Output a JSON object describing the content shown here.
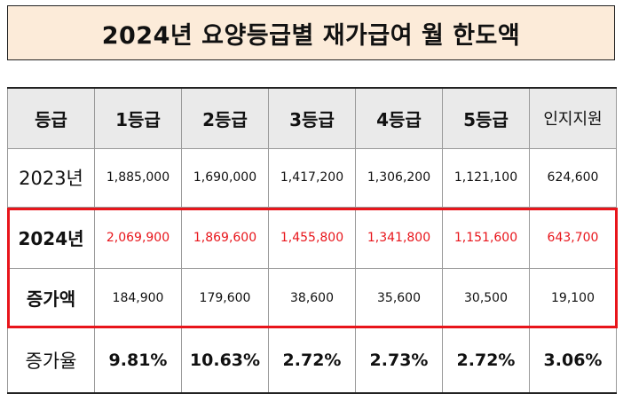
{
  "title": "2024년 요양등급별 재가급여 월 한도액",
  "headers": [
    "등급",
    "1등급",
    "2등급",
    "3등급",
    "4등급",
    "5등급",
    "인지지원"
  ],
  "rows": [
    {
      "label": "2023년",
      "values": [
        "1,885,000",
        "1,690,000",
        "1,417,200",
        "1,306,200",
        "1,121,100",
        "624,600"
      ]
    },
    {
      "label": "2024년",
      "values": [
        "2,069,900",
        "1,869,600",
        "1,455,800",
        "1,341,800",
        "1,151,600",
        "643,700"
      ]
    },
    {
      "label": "증가액",
      "values": [
        "184,900",
        "179,600",
        "38,600",
        "35,600",
        "30,500",
        "19,100"
      ]
    },
    {
      "label": "증가율",
      "values": [
        "9.81%",
        "10.63%",
        "2.72%",
        "2.73%",
        "2.72%",
        "3.06%"
      ]
    }
  ],
  "colors": {
    "title_bg": "#fcebd9",
    "highlight": "#e8151b",
    "header_bg": "#eaeaea"
  }
}
